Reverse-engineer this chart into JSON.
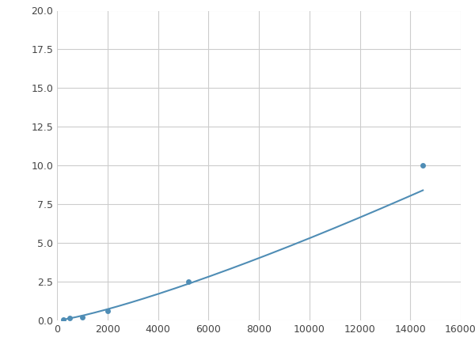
{
  "x_data": [
    250,
    500,
    1000,
    2000,
    5200,
    14500
  ],
  "y_data": [
    0.07,
    0.15,
    0.2,
    0.6,
    2.5,
    10.0
  ],
  "line_color": "#4f8db5",
  "marker_color": "#4f8db5",
  "marker_size": 5,
  "xlim": [
    0,
    16000
  ],
  "ylim": [
    0,
    20
  ],
  "xticks": [
    0,
    2000,
    4000,
    6000,
    8000,
    10000,
    12000,
    14000,
    16000
  ],
  "yticks": [
    0.0,
    2.5,
    5.0,
    7.5,
    10.0,
    12.5,
    15.0,
    17.5,
    20.0
  ],
  "grid_color": "#cccccc",
  "background_color": "#ffffff",
  "figsize": [
    6.0,
    4.5
  ],
  "dpi": 100
}
